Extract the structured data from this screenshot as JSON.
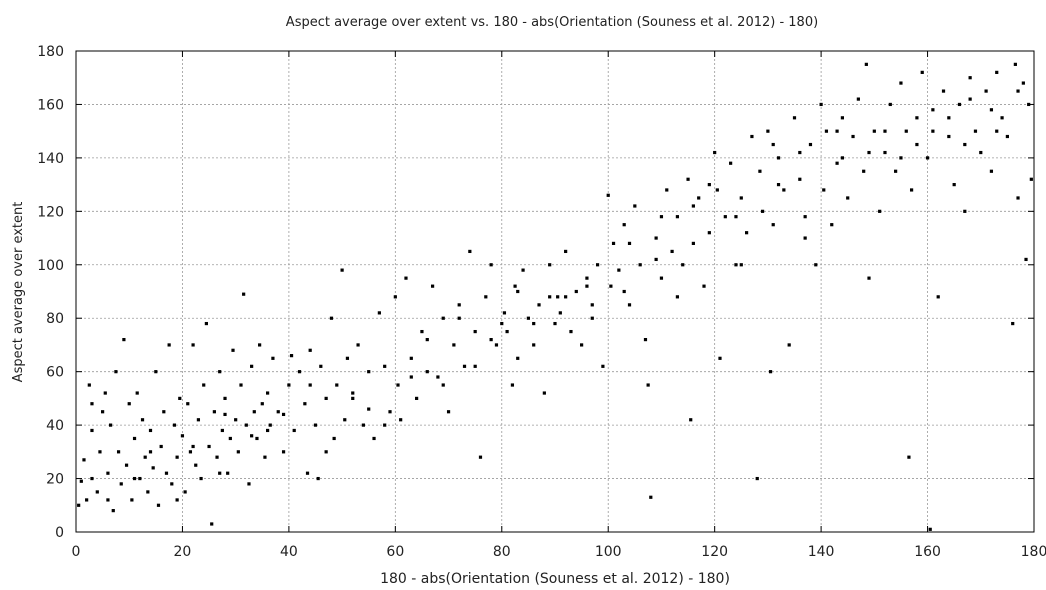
{
  "chart_data": {
    "type": "scatter",
    "title": "Aspect average over extent vs. 180 - abs(Orientation (Souness et al. 2012) - 180)",
    "xlabel": "180 - abs(Orientation (Souness et al. 2012) - 180)",
    "ylabel": "Aspect average over extent",
    "xlim": [
      0,
      180
    ],
    "ylim": [
      0,
      180
    ],
    "xticks": [
      "0",
      "20",
      "40",
      "60",
      "80",
      "100",
      "120",
      "140",
      "160",
      "180"
    ],
    "yticks": [
      "0",
      "20",
      "40",
      "60",
      "80",
      "100",
      "120",
      "140",
      "160",
      "180"
    ],
    "grid": "dotted",
    "point_color": "#000000",
    "points": [
      [
        0.5,
        10
      ],
      [
        1,
        19
      ],
      [
        1.5,
        27
      ],
      [
        2,
        12
      ],
      [
        2.5,
        55
      ],
      [
        3,
        38
      ],
      [
        3,
        20
      ],
      [
        4,
        15
      ],
      [
        4.5,
        30
      ],
      [
        5,
        45
      ],
      [
        5.5,
        52
      ],
      [
        6,
        22
      ],
      [
        6.5,
        40
      ],
      [
        7,
        8
      ],
      [
        7.5,
        60
      ],
      [
        8,
        30
      ],
      [
        8.5,
        18
      ],
      [
        9,
        72
      ],
      [
        9.5,
        25
      ],
      [
        10,
        48
      ],
      [
        10.5,
        12
      ],
      [
        11,
        35
      ],
      [
        11.5,
        52
      ],
      [
        12,
        20
      ],
      [
        12.5,
        42
      ],
      [
        13,
        28
      ],
      [
        13.5,
        15
      ],
      [
        14,
        38
      ],
      [
        14.5,
        24
      ],
      [
        15,
        60
      ],
      [
        15.5,
        10
      ],
      [
        16,
        32
      ],
      [
        16.5,
        45
      ],
      [
        17,
        22
      ],
      [
        17.5,
        70
      ],
      [
        18,
        18
      ],
      [
        18.5,
        40
      ],
      [
        19,
        28
      ],
      [
        19.5,
        50
      ],
      [
        20,
        36
      ],
      [
        20.5,
        15
      ],
      [
        21,
        48
      ],
      [
        21.5,
        30
      ],
      [
        22,
        70
      ],
      [
        22.5,
        25
      ],
      [
        23,
        42
      ],
      [
        23.5,
        20
      ],
      [
        24,
        55
      ],
      [
        24.5,
        78
      ],
      [
        25,
        32
      ],
      [
        25.5,
        3
      ],
      [
        26,
        45
      ],
      [
        26.5,
        28
      ],
      [
        27,
        60
      ],
      [
        27.5,
        38
      ],
      [
        28,
        50
      ],
      [
        28.5,
        22
      ],
      [
        29,
        35
      ],
      [
        29.5,
        68
      ],
      [
        30,
        42
      ],
      [
        30.5,
        30
      ],
      [
        31,
        55
      ],
      [
        31.5,
        89
      ],
      [
        32,
        40
      ],
      [
        32.5,
        18
      ],
      [
        33,
        62
      ],
      [
        33.5,
        45
      ],
      [
        34,
        35
      ],
      [
        34.5,
        70
      ],
      [
        35,
        48
      ],
      [
        35.5,
        28
      ],
      [
        36,
        52
      ],
      [
        36.5,
        40
      ],
      [
        37,
        65
      ],
      [
        38,
        45
      ],
      [
        39,
        30
      ],
      [
        40,
        55
      ],
      [
        40.5,
        66
      ],
      [
        41,
        38
      ],
      [
        42,
        60
      ],
      [
        43,
        48
      ],
      [
        43.5,
        22
      ],
      [
        44,
        68
      ],
      [
        45,
        40
      ],
      [
        45.5,
        20
      ],
      [
        46,
        62
      ],
      [
        47,
        50
      ],
      [
        48,
        80
      ],
      [
        48.5,
        35
      ],
      [
        49,
        55
      ],
      [
        50,
        98
      ],
      [
        50.5,
        42
      ],
      [
        51,
        65
      ],
      [
        52,
        50
      ],
      [
        53,
        70
      ],
      [
        54,
        40
      ],
      [
        55,
        60
      ],
      [
        56,
        35
      ],
      [
        57,
        82
      ],
      [
        58,
        62
      ],
      [
        59,
        45
      ],
      [
        60,
        88
      ],
      [
        60.5,
        55
      ],
      [
        61,
        42
      ],
      [
        62,
        95
      ],
      [
        63,
        65
      ],
      [
        64,
        50
      ],
      [
        65,
        75
      ],
      [
        66,
        60
      ],
      [
        67,
        92
      ],
      [
        68,
        58
      ],
      [
        69,
        80
      ],
      [
        70,
        45
      ],
      [
        71,
        70
      ],
      [
        72,
        85
      ],
      [
        73,
        62
      ],
      [
        74,
        105
      ],
      [
        75,
        75
      ],
      [
        76,
        28
      ],
      [
        77,
        88
      ],
      [
        78,
        100
      ],
      [
        79,
        70
      ],
      [
        80,
        78
      ],
      [
        80.5,
        82
      ],
      [
        81,
        75
      ],
      [
        82,
        55
      ],
      [
        82.5,
        92
      ],
      [
        83,
        65
      ],
      [
        84,
        98
      ],
      [
        85,
        80
      ],
      [
        86,
        70
      ],
      [
        87,
        85
      ],
      [
        88,
        52
      ],
      [
        89,
        100
      ],
      [
        90,
        78
      ],
      [
        90.5,
        88
      ],
      [
        91,
        82
      ],
      [
        92,
        105
      ],
      [
        93,
        75
      ],
      [
        94,
        90
      ],
      [
        95,
        70
      ],
      [
        96,
        95
      ],
      [
        97,
        85
      ],
      [
        98,
        100
      ],
      [
        99,
        62
      ],
      [
        100,
        126
      ],
      [
        100.5,
        92
      ],
      [
        101,
        108
      ],
      [
        102,
        98
      ],
      [
        103,
        115
      ],
      [
        104,
        85
      ],
      [
        105,
        122
      ],
      [
        106,
        100
      ],
      [
        107,
        72
      ],
      [
        107.5,
        55
      ],
      [
        108,
        13
      ],
      [
        109,
        110
      ],
      [
        110,
        95
      ],
      [
        111,
        128
      ],
      [
        112,
        105
      ],
      [
        113,
        118
      ],
      [
        114,
        100
      ],
      [
        115,
        132
      ],
      [
        115.5,
        42
      ],
      [
        116,
        108
      ],
      [
        117,
        125
      ],
      [
        118,
        92
      ],
      [
        119,
        112
      ],
      [
        120,
        142
      ],
      [
        120.5,
        128
      ],
      [
        121,
        65
      ],
      [
        122,
        118
      ],
      [
        123,
        138
      ],
      [
        124,
        100
      ],
      [
        125,
        125
      ],
      [
        126,
        112
      ],
      [
        127,
        148
      ],
      [
        128,
        20
      ],
      [
        128.5,
        135
      ],
      [
        129,
        120
      ],
      [
        130,
        150
      ],
      [
        130.5,
        60
      ],
      [
        131,
        115
      ],
      [
        132,
        140
      ],
      [
        133,
        128
      ],
      [
        134,
        70
      ],
      [
        135,
        155
      ],
      [
        136,
        132
      ],
      [
        137,
        118
      ],
      [
        138,
        145
      ],
      [
        139,
        100
      ],
      [
        140,
        160
      ],
      [
        140.5,
        128
      ],
      [
        141,
        150
      ],
      [
        142,
        115
      ],
      [
        143,
        138
      ],
      [
        144,
        155
      ],
      [
        145,
        125
      ],
      [
        146,
        148
      ],
      [
        147,
        162
      ],
      [
        148,
        135
      ],
      [
        148.5,
        175
      ],
      [
        149,
        95
      ],
      [
        150,
        150
      ],
      [
        151,
        120
      ],
      [
        152,
        142
      ],
      [
        153,
        160
      ],
      [
        154,
        135
      ],
      [
        155,
        168
      ],
      [
        156,
        150
      ],
      [
        156.5,
        28
      ],
      [
        157,
        128
      ],
      [
        158,
        155
      ],
      [
        159,
        172
      ],
      [
        160,
        140
      ],
      [
        160.5,
        1
      ],
      [
        161,
        158
      ],
      [
        162,
        88
      ],
      [
        163,
        165
      ],
      [
        164,
        148
      ],
      [
        165,
        130
      ],
      [
        166,
        160
      ],
      [
        167,
        120
      ],
      [
        168,
        170
      ],
      [
        169,
        150
      ],
      [
        170,
        142
      ],
      [
        171,
        165
      ],
      [
        172,
        135
      ],
      [
        173,
        172
      ],
      [
        174,
        155
      ],
      [
        175,
        148
      ],
      [
        176,
        78
      ],
      [
        176.5,
        175
      ],
      [
        177,
        125
      ],
      [
        178,
        168
      ],
      [
        178.5,
        102
      ],
      [
        179,
        160
      ],
      [
        179.5,
        132
      ],
      [
        6,
        12
      ],
      [
        14,
        30
      ],
      [
        22,
        32
      ],
      [
        28,
        44
      ],
      [
        36,
        38
      ],
      [
        44,
        55
      ],
      [
        52,
        52
      ],
      [
        58,
        40
      ],
      [
        66,
        72
      ],
      [
        72,
        80
      ],
      [
        78,
        72
      ],
      [
        86,
        78
      ],
      [
        92,
        88
      ],
      [
        96,
        92
      ],
      [
        104,
        108
      ],
      [
        110,
        118
      ],
      [
        116,
        122
      ],
      [
        124,
        118
      ],
      [
        132,
        130
      ],
      [
        136,
        142
      ],
      [
        144,
        140
      ],
      [
        152,
        150
      ],
      [
        158,
        145
      ],
      [
        164,
        155
      ],
      [
        168,
        162
      ],
      [
        172,
        158
      ],
      [
        3,
        48
      ],
      [
        11,
        20
      ],
      [
        19,
        12
      ],
      [
        27,
        22
      ],
      [
        33,
        36
      ],
      [
        39,
        44
      ],
      [
        47,
        30
      ],
      [
        55,
        46
      ],
      [
        63,
        58
      ],
      [
        69,
        55
      ],
      [
        75,
        62
      ],
      [
        83,
        90
      ],
      [
        89,
        88
      ],
      [
        97,
        80
      ],
      [
        103,
        90
      ],
      [
        109,
        102
      ],
      [
        113,
        88
      ],
      [
        119,
        130
      ],
      [
        125,
        100
      ],
      [
        131,
        145
      ],
      [
        137,
        110
      ],
      [
        143,
        150
      ],
      [
        149,
        142
      ],
      [
        155,
        140
      ],
      [
        161,
        150
      ],
      [
        167,
        145
      ],
      [
        173,
        150
      ],
      [
        177,
        165
      ]
    ]
  }
}
